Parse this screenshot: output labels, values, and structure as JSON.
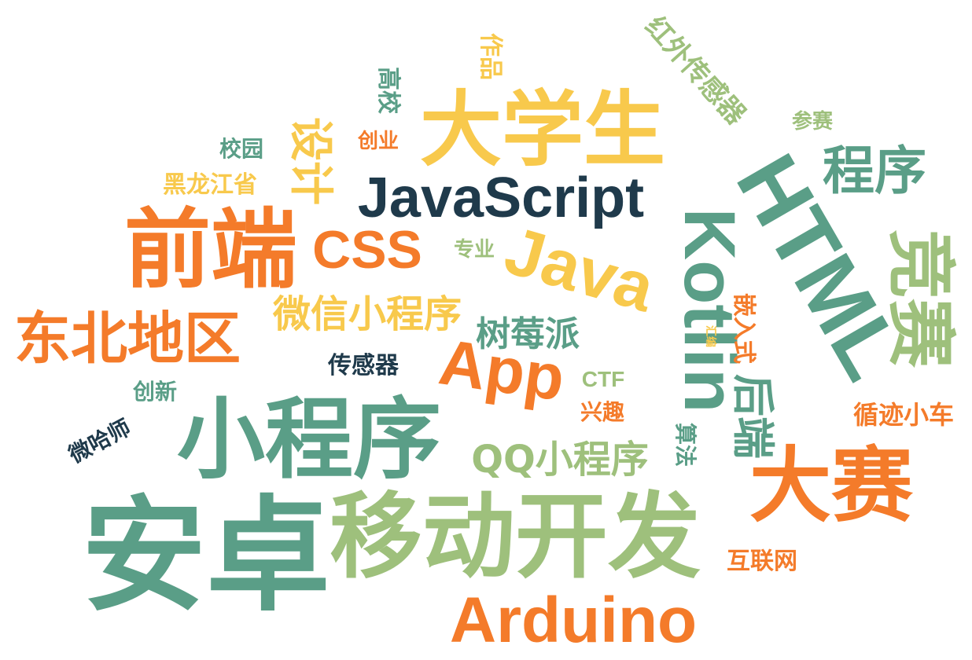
{
  "palette": {
    "teal": "#5a9e87",
    "sage": "#9ec07c",
    "orange": "#f47b2a",
    "yellow": "#f8c94c",
    "navy": "#1f3a4b"
  },
  "words": [
    {
      "text": "安卓",
      "color": "teal"
    },
    {
      "text": "移动开发",
      "color": "sage"
    },
    {
      "text": "小程序",
      "color": "teal"
    },
    {
      "text": "大学生",
      "color": "yellow"
    },
    {
      "text": "前端",
      "color": "orange"
    },
    {
      "text": "JavaScript",
      "color": "navy"
    },
    {
      "text": "HTML",
      "color": "teal"
    },
    {
      "text": "Kotlin",
      "color": "teal"
    },
    {
      "text": "Java",
      "color": "yellow"
    },
    {
      "text": "App",
      "color": "orange"
    },
    {
      "text": "大赛",
      "color": "orange"
    },
    {
      "text": "Arduino",
      "color": "orange"
    },
    {
      "text": "竞赛",
      "color": "sage"
    },
    {
      "text": "东北地区",
      "color": "orange"
    },
    {
      "text": "程序",
      "color": "teal"
    },
    {
      "text": "CSS",
      "color": "orange"
    },
    {
      "text": "微信小程序",
      "color": "yellow"
    },
    {
      "text": "QQ小程序",
      "color": "sage"
    },
    {
      "text": "后端",
      "color": "teal"
    },
    {
      "text": "树莓派",
      "color": "teal"
    },
    {
      "text": "设计",
      "color": "yellow"
    },
    {
      "text": "高校",
      "color": "teal"
    },
    {
      "text": "作品",
      "color": "yellow"
    },
    {
      "text": "红外传感器",
      "color": "sage"
    },
    {
      "text": "参赛",
      "color": "sage"
    },
    {
      "text": "创业",
      "color": "orange"
    },
    {
      "text": "校园",
      "color": "teal"
    },
    {
      "text": "黑龙江省",
      "color": "yellow"
    },
    {
      "text": "专业",
      "color": "sage"
    },
    {
      "text": "嵌入式",
      "color": "orange"
    },
    {
      "text": "汇编",
      "color": "yellow"
    },
    {
      "text": "传感器",
      "color": "navy"
    },
    {
      "text": "CTF",
      "color": "sage"
    },
    {
      "text": "创新",
      "color": "teal"
    },
    {
      "text": "兴趣",
      "color": "orange"
    },
    {
      "text": "微哈师",
      "color": "navy"
    },
    {
      "text": "算法",
      "color": "teal"
    },
    {
      "text": "循迹小车",
      "color": "orange"
    },
    {
      "text": "互联网",
      "color": "orange"
    }
  ]
}
